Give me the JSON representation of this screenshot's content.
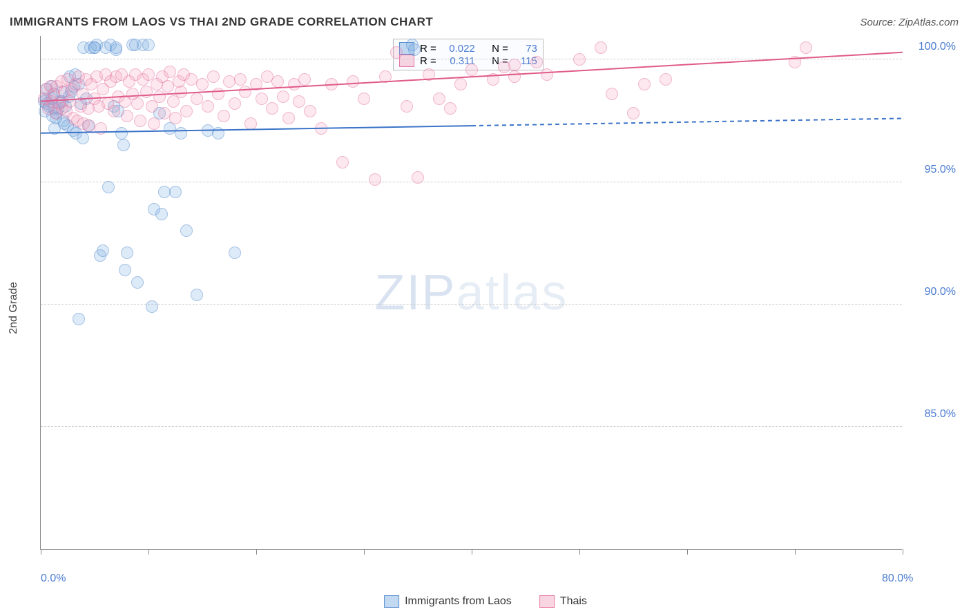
{
  "title": "IMMIGRANTS FROM LAOS VS THAI 2ND GRADE CORRELATION CHART",
  "source": "Source: ZipAtlas.com",
  "ylabel": "2nd Grade",
  "watermark_a": "ZIP",
  "watermark_b": "atlas",
  "chart": {
    "type": "scatter",
    "xlim": [
      0,
      80
    ],
    "ylim": [
      80,
      101
    ],
    "xticks": [
      0,
      10,
      20,
      30,
      40,
      50,
      60,
      70,
      80
    ],
    "xtick_labels": {
      "0": "0.0%",
      "80": "80.0%"
    },
    "yticks": [
      85,
      90,
      95,
      100
    ],
    "ytick_labels": [
      "85.0%",
      "90.0%",
      "95.0%",
      "100.0%"
    ],
    "grid_color": "#cccccc",
    "background_color": "#ffffff",
    "marker_size": 18,
    "series": [
      {
        "name": "Immigrants from Laos",
        "color_fill": "rgba(120,170,225,0.45)",
        "color_stroke": "#5a8fd0",
        "R": "0.022",
        "N": "73",
        "trend": {
          "x1": 0,
          "y1": 97.0,
          "x2": 40,
          "y2": 97.3,
          "x_extrap": 80,
          "y_extrap": 97.6,
          "color": "#3a73c8",
          "width": 2
        },
        "points": [
          [
            0.3,
            98.3
          ],
          [
            0.4,
            97.9
          ],
          [
            0.5,
            98.4
          ],
          [
            0.6,
            98.2
          ],
          [
            0.8,
            98.1
          ],
          [
            1.0,
            98.9
          ],
          [
            1.1,
            97.7
          ],
          [
            1.2,
            98.6
          ],
          [
            1.3,
            97.2
          ],
          [
            1.5,
            97.8
          ],
          [
            1.6,
            98.0
          ],
          [
            1.8,
            98.3
          ],
          [
            2.0,
            98.3
          ],
          [
            2.1,
            97.5
          ],
          [
            2.3,
            98.1
          ],
          [
            2.5,
            97.3
          ],
          [
            2.6,
            98.5
          ],
          [
            2.8,
            98.7
          ],
          [
            3.0,
            97.1
          ],
          [
            3.1,
            98.9
          ],
          [
            3.3,
            97.0
          ],
          [
            3.5,
            99.0
          ],
          [
            3.7,
            98.2
          ],
          [
            3.9,
            96.8
          ],
          [
            4.0,
            100.5
          ],
          [
            4.2,
            98.4
          ],
          [
            4.4,
            97.3
          ],
          [
            4.6,
            100.5
          ],
          [
            5.0,
            100.5
          ],
          [
            5.2,
            100.6
          ],
          [
            5.5,
            92.0
          ],
          [
            5.8,
            92.2
          ],
          [
            6.0,
            100.5
          ],
          [
            6.3,
            94.8
          ],
          [
            6.5,
            100.6
          ],
          [
            6.8,
            98.1
          ],
          [
            7.0,
            100.4
          ],
          [
            7.2,
            97.9
          ],
          [
            7.5,
            97.0
          ],
          [
            7.7,
            96.5
          ],
          [
            7.8,
            91.4
          ],
          [
            8.0,
            92.1
          ],
          [
            8.5,
            100.6
          ],
          [
            8.8,
            100.6
          ],
          [
            9.0,
            90.9
          ],
          [
            9.5,
            100.6
          ],
          [
            10.0,
            100.6
          ],
          [
            10.3,
            89.9
          ],
          [
            10.5,
            93.9
          ],
          [
            11.0,
            97.8
          ],
          [
            11.2,
            93.7
          ],
          [
            11.5,
            94.6
          ],
          [
            12.0,
            97.2
          ],
          [
            12.5,
            94.6
          ],
          [
            13.0,
            97.0
          ],
          [
            13.5,
            93.0
          ],
          [
            14.5,
            90.4
          ],
          [
            15.5,
            97.1
          ],
          [
            16.5,
            97.0
          ],
          [
            18.0,
            92.1
          ],
          [
            3.5,
            89.4
          ],
          [
            5.0,
            100.5
          ],
          [
            7.0,
            100.5
          ],
          [
            34.5,
            100.6
          ],
          [
            34.7,
            100.4
          ],
          [
            1.0,
            98.4
          ],
          [
            1.2,
            98.0
          ],
          [
            1.4,
            97.6
          ],
          [
            2.0,
            98.7
          ],
          [
            2.2,
            97.4
          ],
          [
            2.7,
            99.3
          ],
          [
            3.2,
            99.4
          ],
          [
            0.6,
            98.8
          ]
        ]
      },
      {
        "name": "Thais",
        "color_fill": "rgba(240,150,180,0.40)",
        "color_stroke": "#e77aa5",
        "R": "0.311",
        "N": "115",
        "trend": {
          "x1": 0,
          "y1": 98.3,
          "x2": 80,
          "y2": 100.3,
          "color": "#e05a8a",
          "width": 2
        },
        "points": [
          [
            0.3,
            98.4
          ],
          [
            0.5,
            98.8
          ],
          [
            0.7,
            98.0
          ],
          [
            0.9,
            98.9
          ],
          [
            1.0,
            98.3
          ],
          [
            1.2,
            98.6
          ],
          [
            1.4,
            97.8
          ],
          [
            1.5,
            98.9
          ],
          [
            1.7,
            98.2
          ],
          [
            1.9,
            99.1
          ],
          [
            2.0,
            98.0
          ],
          [
            2.2,
            98.7
          ],
          [
            2.4,
            97.9
          ],
          [
            2.5,
            99.2
          ],
          [
            2.7,
            98.3
          ],
          [
            2.9,
            98.8
          ],
          [
            3.0,
            97.6
          ],
          [
            3.2,
            99.0
          ],
          [
            3.4,
            97.5
          ],
          [
            3.5,
            99.3
          ],
          [
            3.7,
            98.1
          ],
          [
            3.9,
            98.6
          ],
          [
            4.0,
            97.4
          ],
          [
            4.2,
            99.2
          ],
          [
            4.4,
            98.0
          ],
          [
            4.5,
            97.3
          ],
          [
            4.7,
            99.0
          ],
          [
            5.0,
            98.4
          ],
          [
            5.2,
            99.3
          ],
          [
            5.4,
            98.1
          ],
          [
            5.6,
            97.2
          ],
          [
            5.8,
            98.8
          ],
          [
            6.0,
            99.4
          ],
          [
            6.2,
            98.2
          ],
          [
            6.5,
            99.1
          ],
          [
            6.8,
            97.9
          ],
          [
            7.0,
            99.3
          ],
          [
            7.2,
            98.5
          ],
          [
            7.5,
            99.4
          ],
          [
            7.8,
            98.3
          ],
          [
            8.0,
            97.7
          ],
          [
            8.2,
            99.1
          ],
          [
            8.5,
            98.6
          ],
          [
            8.8,
            99.4
          ],
          [
            9.0,
            98.2
          ],
          [
            9.2,
            97.5
          ],
          [
            9.5,
            99.2
          ],
          [
            9.8,
            98.7
          ],
          [
            10.0,
            99.4
          ],
          [
            10.3,
            98.1
          ],
          [
            10.5,
            97.4
          ],
          [
            10.8,
            99.0
          ],
          [
            11.0,
            98.5
          ],
          [
            11.3,
            99.3
          ],
          [
            11.5,
            97.8
          ],
          [
            11.8,
            98.9
          ],
          [
            12.0,
            99.5
          ],
          [
            12.3,
            98.3
          ],
          [
            12.5,
            97.6
          ],
          [
            12.8,
            99.1
          ],
          [
            13.0,
            98.7
          ],
          [
            13.3,
            99.4
          ],
          [
            13.5,
            97.9
          ],
          [
            14.0,
            99.2
          ],
          [
            14.5,
            98.4
          ],
          [
            15.0,
            99.0
          ],
          [
            15.5,
            98.1
          ],
          [
            16.0,
            99.3
          ],
          [
            16.5,
            98.6
          ],
          [
            17.0,
            97.7
          ],
          [
            17.5,
            99.1
          ],
          [
            18.0,
            98.2
          ],
          [
            18.5,
            99.2
          ],
          [
            19.0,
            98.7
          ],
          [
            19.5,
            97.4
          ],
          [
            20.0,
            99.0
          ],
          [
            20.5,
            98.4
          ],
          [
            21.0,
            99.3
          ],
          [
            21.5,
            98.0
          ],
          [
            22.0,
            99.1
          ],
          [
            22.5,
            98.5
          ],
          [
            23.0,
            97.6
          ],
          [
            23.5,
            99.0
          ],
          [
            24.0,
            98.3
          ],
          [
            24.5,
            99.2
          ],
          [
            25.0,
            97.9
          ],
          [
            26.0,
            97.2
          ],
          [
            27.0,
            99.0
          ],
          [
            28.0,
            95.8
          ],
          [
            29.0,
            99.1
          ],
          [
            30.0,
            98.4
          ],
          [
            31.0,
            95.1
          ],
          [
            32.0,
            99.3
          ],
          [
            33.0,
            100.3
          ],
          [
            34.0,
            98.1
          ],
          [
            35.0,
            95.2
          ],
          [
            36.0,
            99.4
          ],
          [
            37.0,
            98.4
          ],
          [
            38.0,
            98.0
          ],
          [
            39.0,
            99.0
          ],
          [
            40.0,
            99.6
          ],
          [
            42.0,
            99.2
          ],
          [
            43.0,
            99.7
          ],
          [
            44.0,
            99.3
          ],
          [
            46.0,
            99.9
          ],
          [
            47.0,
            99.4
          ],
          [
            50.0,
            100.0
          ],
          [
            52.0,
            100.5
          ],
          [
            53.0,
            98.6
          ],
          [
            55.0,
            97.8
          ],
          [
            56.0,
            99.0
          ],
          [
            58.0,
            99.2
          ],
          [
            70.0,
            99.9
          ],
          [
            71.0,
            100.5
          ],
          [
            44.0,
            99.8
          ]
        ]
      }
    ]
  },
  "legend_top": {
    "rows": [
      {
        "swatch": "blue",
        "r_label": "R =",
        "r_val": "0.022",
        "n_label": "N =",
        "n_val": "73"
      },
      {
        "swatch": "pink",
        "r_label": "R =",
        "r_val": "0.311",
        "n_label": "N =",
        "n_val": "115"
      }
    ]
  },
  "legend_bottom": [
    {
      "swatch": "blue",
      "label": "Immigrants from Laos"
    },
    {
      "swatch": "pink",
      "label": "Thais"
    }
  ]
}
